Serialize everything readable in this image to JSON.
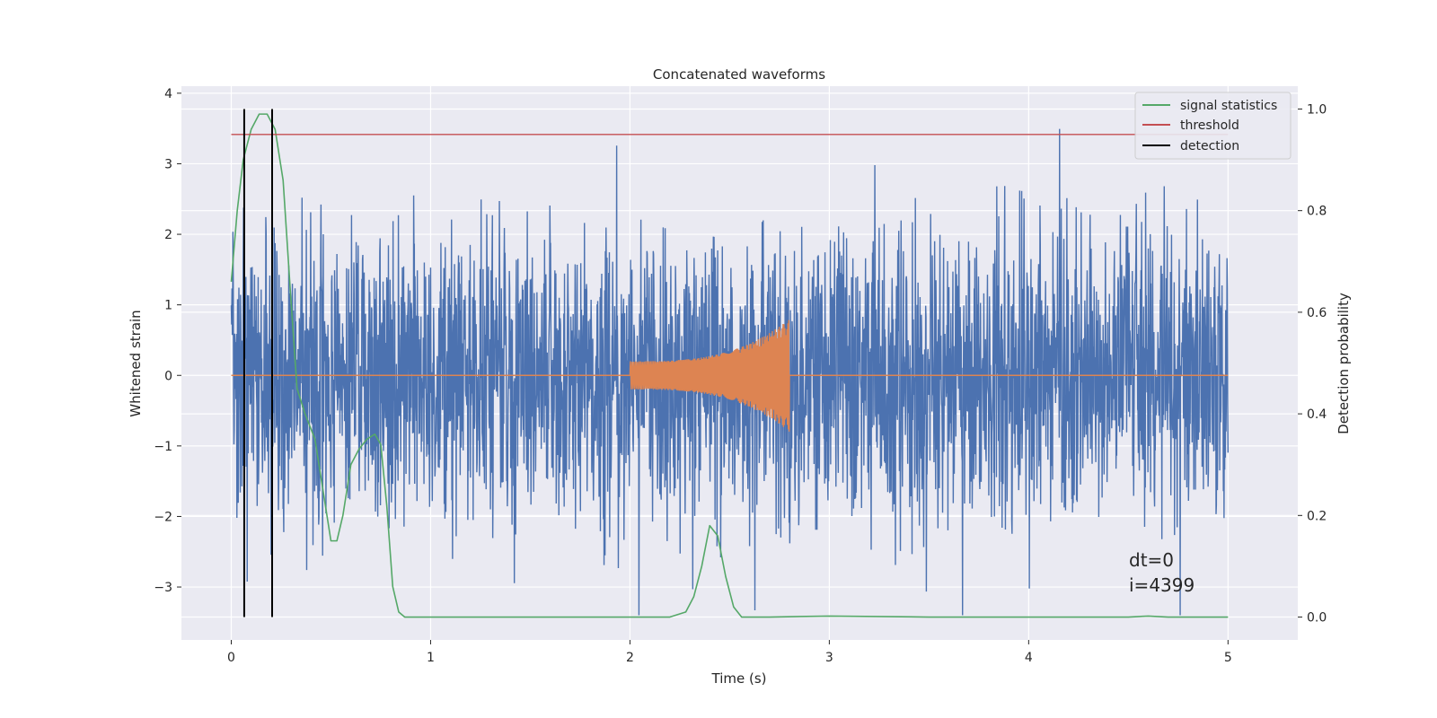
{
  "chart_data": {
    "type": "line",
    "title": "Concatenated waveforms",
    "xlabel": "Time (s)",
    "ylabel": "Whitened strain",
    "y2label": "Detection probability",
    "xlim": [
      -0.25,
      5.35
    ],
    "ylim": [
      -3.75,
      4.1
    ],
    "y2lim": [
      -0.045,
      1.045
    ],
    "xticks": [
      "0",
      "1",
      "2",
      "3",
      "4",
      "5"
    ],
    "yticks": [
      "4",
      "3",
      "2",
      "1",
      "0",
      "−1",
      "−2",
      "−3"
    ],
    "y2ticks": [
      "1.0",
      "0.8",
      "0.6",
      "0.4",
      "0.2",
      "0.0"
    ],
    "grid": true,
    "legend_position": "top-right",
    "series": [
      {
        "name": "",
        "kind": "noise",
        "color": "#4c72b0",
        "x_range": [
          0,
          5
        ],
        "amplitude": 2.4
      },
      {
        "name": "",
        "kind": "chirp",
        "color": "#dd8452",
        "x_range": [
          2.0,
          2.8
        ],
        "amplitude_start": 0.2,
        "amplitude_end": 0.8
      },
      {
        "name": "signal statistics",
        "axis": "right",
        "color": "#55a868",
        "x": [
          0,
          0.03,
          0.06,
          0.1,
          0.14,
          0.18,
          0.22,
          0.26,
          0.3,
          0.33,
          0.37,
          0.42,
          0.46,
          0.5,
          0.53,
          0.56,
          0.6,
          0.64,
          0.68,
          0.72,
          0.75,
          0.78,
          0.81,
          0.84,
          0.87,
          0.9,
          1.0,
          1.5,
          2.0,
          2.2,
          2.28,
          2.32,
          2.36,
          2.4,
          2.44,
          2.48,
          2.52,
          2.56,
          2.7,
          3.0,
          3.5,
          4.0,
          4.5,
          4.6,
          4.7,
          5.0
        ],
        "y": [
          0.66,
          0.8,
          0.9,
          0.96,
          0.99,
          0.99,
          0.96,
          0.86,
          0.62,
          0.45,
          0.4,
          0.35,
          0.25,
          0.15,
          0.15,
          0.2,
          0.3,
          0.33,
          0.35,
          0.36,
          0.34,
          0.22,
          0.06,
          0.01,
          0.0,
          0.0,
          0.0,
          0.0,
          0.0,
          0.0,
          0.01,
          0.04,
          0.1,
          0.18,
          0.16,
          0.08,
          0.02,
          0.0,
          0.0,
          0.002,
          0.0,
          0.0,
          0.0,
          0.002,
          0.0,
          0.0
        ]
      },
      {
        "name": "threshold",
        "axis": "right",
        "color": "#c44e52",
        "x": [
          0,
          5
        ],
        "y": [
          0.95,
          0.95
        ]
      },
      {
        "name": "detection",
        "color": "#000000",
        "vlines_x": [
          0.065,
          0.205
        ],
        "y2_range": [
          0.0,
          1.0
        ]
      }
    ],
    "annotations": [
      "dt=0",
      "i=4399"
    ]
  }
}
